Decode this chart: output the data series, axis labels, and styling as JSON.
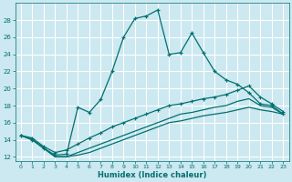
{
  "xlabel": "Humidex (Indice chaleur)",
  "bg_color": "#cce8f0",
  "grid_color": "#ffffff",
  "line_color": "#007070",
  "x": [
    0,
    1,
    2,
    3,
    4,
    5,
    6,
    7,
    8,
    9,
    10,
    11,
    12,
    13,
    14,
    15,
    16,
    17,
    18,
    19,
    20,
    21,
    22,
    23
  ],
  "y_main": [
    14.5,
    14.0,
    13.0,
    12.2,
    12.3,
    17.8,
    17.2,
    18.7,
    22.0,
    26.0,
    28.2,
    28.5,
    29.2,
    24.0,
    24.2,
    26.5,
    24.2,
    22.0,
    21.0,
    20.5,
    19.5,
    18.2,
    18.0,
    17.0
  ],
  "y_line2": [
    14.5,
    14.2,
    13.2,
    12.5,
    12.8,
    13.5,
    14.2,
    14.8,
    15.5,
    16.0,
    16.5,
    17.0,
    17.5,
    18.0,
    18.2,
    18.5,
    18.8,
    19.0,
    19.3,
    19.8,
    20.3,
    19.0,
    18.2,
    17.3
  ],
  "y_line3": [
    14.5,
    14.0,
    13.0,
    12.0,
    12.0,
    12.5,
    13.0,
    13.5,
    14.0,
    14.5,
    15.0,
    15.5,
    16.0,
    16.5,
    17.0,
    17.2,
    17.5,
    17.8,
    18.0,
    18.5,
    18.8,
    18.0,
    17.8,
    17.0
  ],
  "y_line4": [
    14.5,
    14.0,
    13.0,
    12.0,
    12.0,
    12.2,
    12.5,
    13.0,
    13.5,
    14.0,
    14.5,
    15.0,
    15.5,
    16.0,
    16.2,
    16.5,
    16.8,
    17.0,
    17.2,
    17.5,
    17.8,
    17.5,
    17.3,
    17.0
  ],
  "ylim": [
    11.5,
    30.0
  ],
  "xlim": [
    -0.5,
    23.5
  ],
  "yticks": [
    12,
    14,
    16,
    18,
    20,
    22,
    24,
    26,
    28
  ],
  "xticks": [
    0,
    1,
    2,
    3,
    4,
    5,
    6,
    7,
    8,
    9,
    10,
    11,
    12,
    13,
    14,
    15,
    16,
    17,
    18,
    19,
    20,
    21,
    22,
    23
  ]
}
